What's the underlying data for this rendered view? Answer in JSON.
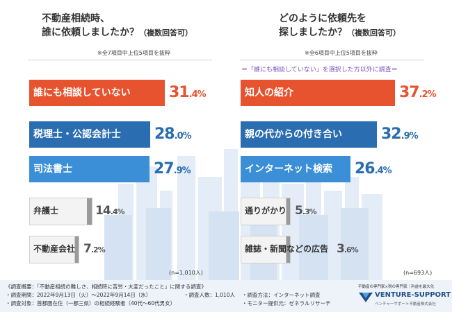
{
  "left": {
    "title_line1": "不動産相続時、",
    "title_line2": "誰に依頼しましたか？",
    "title_suffix": "（複数回答可）",
    "note": "※全7項目中上位5項目を抜粋",
    "n": "(n=1,010人)"
  },
  "right": {
    "title_line1": "どのように依頼先を",
    "title_line2": "探しましたか？",
    "title_suffix": "（複数回答可）",
    "note": "※全6項目中上位5項目を抜粋",
    "subtitle": "＝「誰にも相談していない」を選択した方以外に調査＝",
    "n": "(n=693人)"
  },
  "chart_data": [
    {
      "type": "bar",
      "orientation": "horizontal",
      "title": "不動産相続時、誰に依頼しましたか？（複数回答可）",
      "unit": "%",
      "categories": [
        "誰にも相談していない",
        "税理士・公認会計士",
        "司法書士",
        "弁護士",
        "不動産会社"
      ],
      "values": [
        31.4,
        28.0,
        27.9,
        14.4,
        7.2
      ],
      "value_labels": [
        {
          "int": "31",
          "dec": ".4",
          "unit": "%"
        },
        {
          "int": "28",
          "dec": ".0",
          "unit": "%"
        },
        {
          "int": "27",
          "dec": ".9",
          "unit": "%"
        },
        {
          "int": "14",
          "dec": ".4",
          "unit": "%"
        },
        {
          "int": "7",
          "dec": ".2",
          "unit": "%"
        }
      ],
      "colors": [
        "#e8532f",
        "#2a6db0",
        "#3a8fd6",
        "#9a9a9a",
        "#9a9a9a"
      ],
      "n": "n=1,010人"
    },
    {
      "type": "bar",
      "orientation": "horizontal",
      "title": "どのように依頼先を探しましたか？（複数回答可）",
      "unit": "%",
      "categories": [
        "知人の紹介",
        "親の代からの付き合い",
        "インターネット検索",
        "通りがかり",
        "雑誌・新聞などの広告"
      ],
      "values": [
        37.2,
        32.9,
        26.4,
        5.3,
        3.6
      ],
      "value_labels": [
        {
          "int": "37",
          "dec": ".2",
          "unit": "%"
        },
        {
          "int": "32",
          "dec": ".9",
          "unit": "%"
        },
        {
          "int": "26",
          "dec": ".4",
          "unit": "%"
        },
        {
          "int": "5",
          "dec": ".3",
          "unit": "%"
        },
        {
          "int": "3",
          "dec": ".6",
          "unit": "%"
        }
      ],
      "colors": [
        "#e8532f",
        "#2a6db0",
        "#3a8fd6",
        "#9a9a9a",
        "#9a9a9a"
      ],
      "n": "n=693人"
    }
  ],
  "survey": {
    "line1": "《調査概要：「不動産相続の難しさ、相続時に苦労・大変だったこと」に関する調査》",
    "line2a": "・調査期間：2022年9月13日（火）～2022年9月14日（水）",
    "line2b": "・調査人数：1,010人",
    "line3": "・調査対象：首都圏在住（一都三県）の相続経験者（40代～60代男女）",
    "method": "・調査方法：インターネット調査",
    "monitor": "・モニター提供元：ゼネラルリサーチ"
  },
  "logo": {
    "tagline": "不動産の専門家×税の専門家｜利益を最大化",
    "name": "VENTURE-SUPPORT",
    "sub": "ベンチャーサポート不動産株式会社"
  },
  "colors": {
    "orange": "#e8532f",
    "navy": "#2a6db0",
    "blue": "#3a8fd6",
    "gray": "#9a9a9a",
    "purple": "#7b4fc0"
  }
}
